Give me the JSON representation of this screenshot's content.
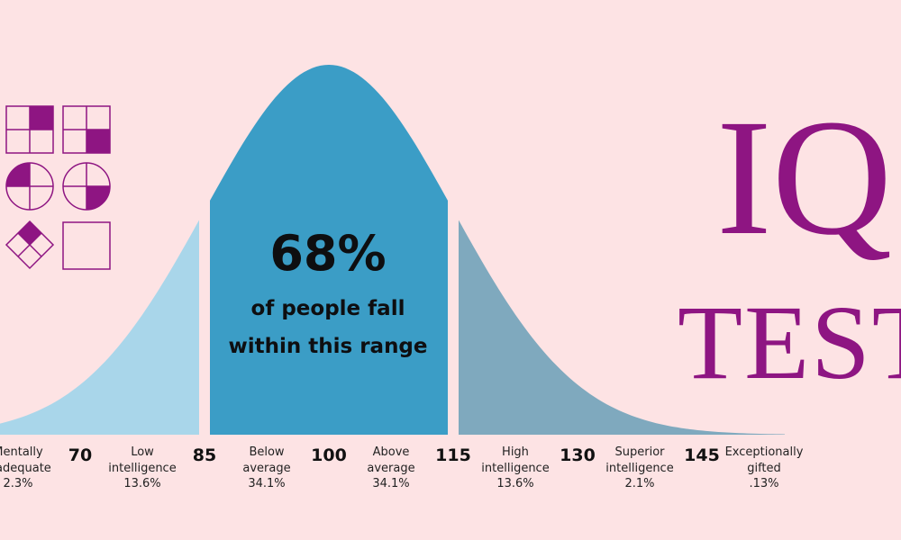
{
  "title": {
    "line1": "IQ",
    "line2": "TEST"
  },
  "center_text": {
    "percent": "68%",
    "line1": "of people fall",
    "line2": "within this range"
  },
  "colors": {
    "background": "#fde3e4",
    "center_band": "#3b9dc6",
    "inner_band": "#8ec9e0",
    "outer_band": "#a9d6ea",
    "right_band": "#7fa9be",
    "title": "#8e1582",
    "puzzle_purple": "#8e1582"
  },
  "puzzle_icons": [
    "square-grid-top-right",
    "square-grid-bottom-right",
    "circle-quarter-top-left",
    "circle-quarter-bottom-right",
    "diamond-top-filled",
    "empty-square"
  ],
  "chart_data": {
    "type": "area",
    "distribution": "normal",
    "mean": 100,
    "std_dev": 15,
    "x_ticks": [
      70,
      85,
      100,
      115,
      130,
      145
    ],
    "regions": [
      {
        "name": "Mentally inadequate",
        "line1": "Mentally",
        "line2": "inadequate",
        "pct": "2.3%",
        "from": 55,
        "to": 70
      },
      {
        "name": "Low intelligence",
        "line1": "Low",
        "line2": "intelligence",
        "pct": "13.6%",
        "from": 70,
        "to": 85
      },
      {
        "name": "Below average",
        "line1": "Below",
        "line2": "average",
        "pct": "34.1%",
        "from": 85,
        "to": 100
      },
      {
        "name": "Above average",
        "line1": "Above",
        "line2": "average",
        "pct": "34.1%",
        "from": 100,
        "to": 115
      },
      {
        "name": "High intelligence",
        "line1": "High",
        "line2": "intelligence",
        "pct": "13.6%",
        "from": 115,
        "to": 130
      },
      {
        "name": "Superior intelligence",
        "line1": "Superior",
        "line2": "intelligence",
        "pct": "2.1%",
        "from": 130,
        "to": 145
      },
      {
        "name": "Exceptionally gifted",
        "line1": "Exceptionally",
        "line2": "gifted",
        "pct": ".13%",
        "from": 145,
        "to": 160
      }
    ],
    "highlight_range": [
      85,
      115
    ],
    "highlight_label": "68%"
  }
}
